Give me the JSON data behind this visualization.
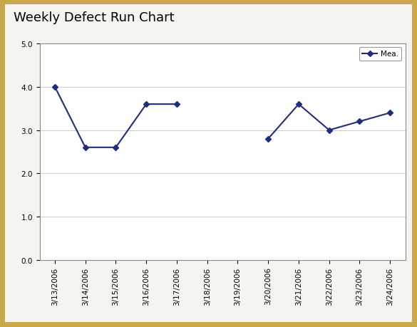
{
  "title": "Weekly Defect Run Chart",
  "x_labels": [
    "3/13/2006",
    "3/14/2006",
    "3/15/2006",
    "3/16/2006",
    "3/17/2006",
    "3/18/2006",
    "3/19/2006",
    "3/20/2006",
    "3/21/2006",
    "3/22/2006",
    "3/23/2006",
    "3/24/2006"
  ],
  "y_values": [
    4.0,
    2.6,
    2.6,
    3.6,
    3.6,
    null,
    null,
    2.8,
    3.6,
    3.0,
    3.2,
    3.4
  ],
  "ylim": [
    0.0,
    5.0
  ],
  "yticks": [
    0.0,
    1.0,
    2.0,
    3.0,
    4.0,
    5.0
  ],
  "ytick_labels": [
    "0.0",
    "1.0",
    "2.0",
    "3.0",
    "4.0",
    "5.0"
  ],
  "line_color": "#1F2D7B",
  "marker": "D",
  "marker_size": 4,
  "line_width": 1.5,
  "legend_label": "Mea.",
  "title_fontsize": 13,
  "tick_fontsize": 7.5,
  "legend_fontsize": 7.5,
  "outer_border_color": "#C8A84B",
  "inner_bg_color": "#F5F5F0",
  "plot_bg_color": "#FFFFFF",
  "grid_color": "#CCCCCC",
  "grid_linewidth": 0.7,
  "spine_color": "#888888",
  "border_thickness": 6
}
